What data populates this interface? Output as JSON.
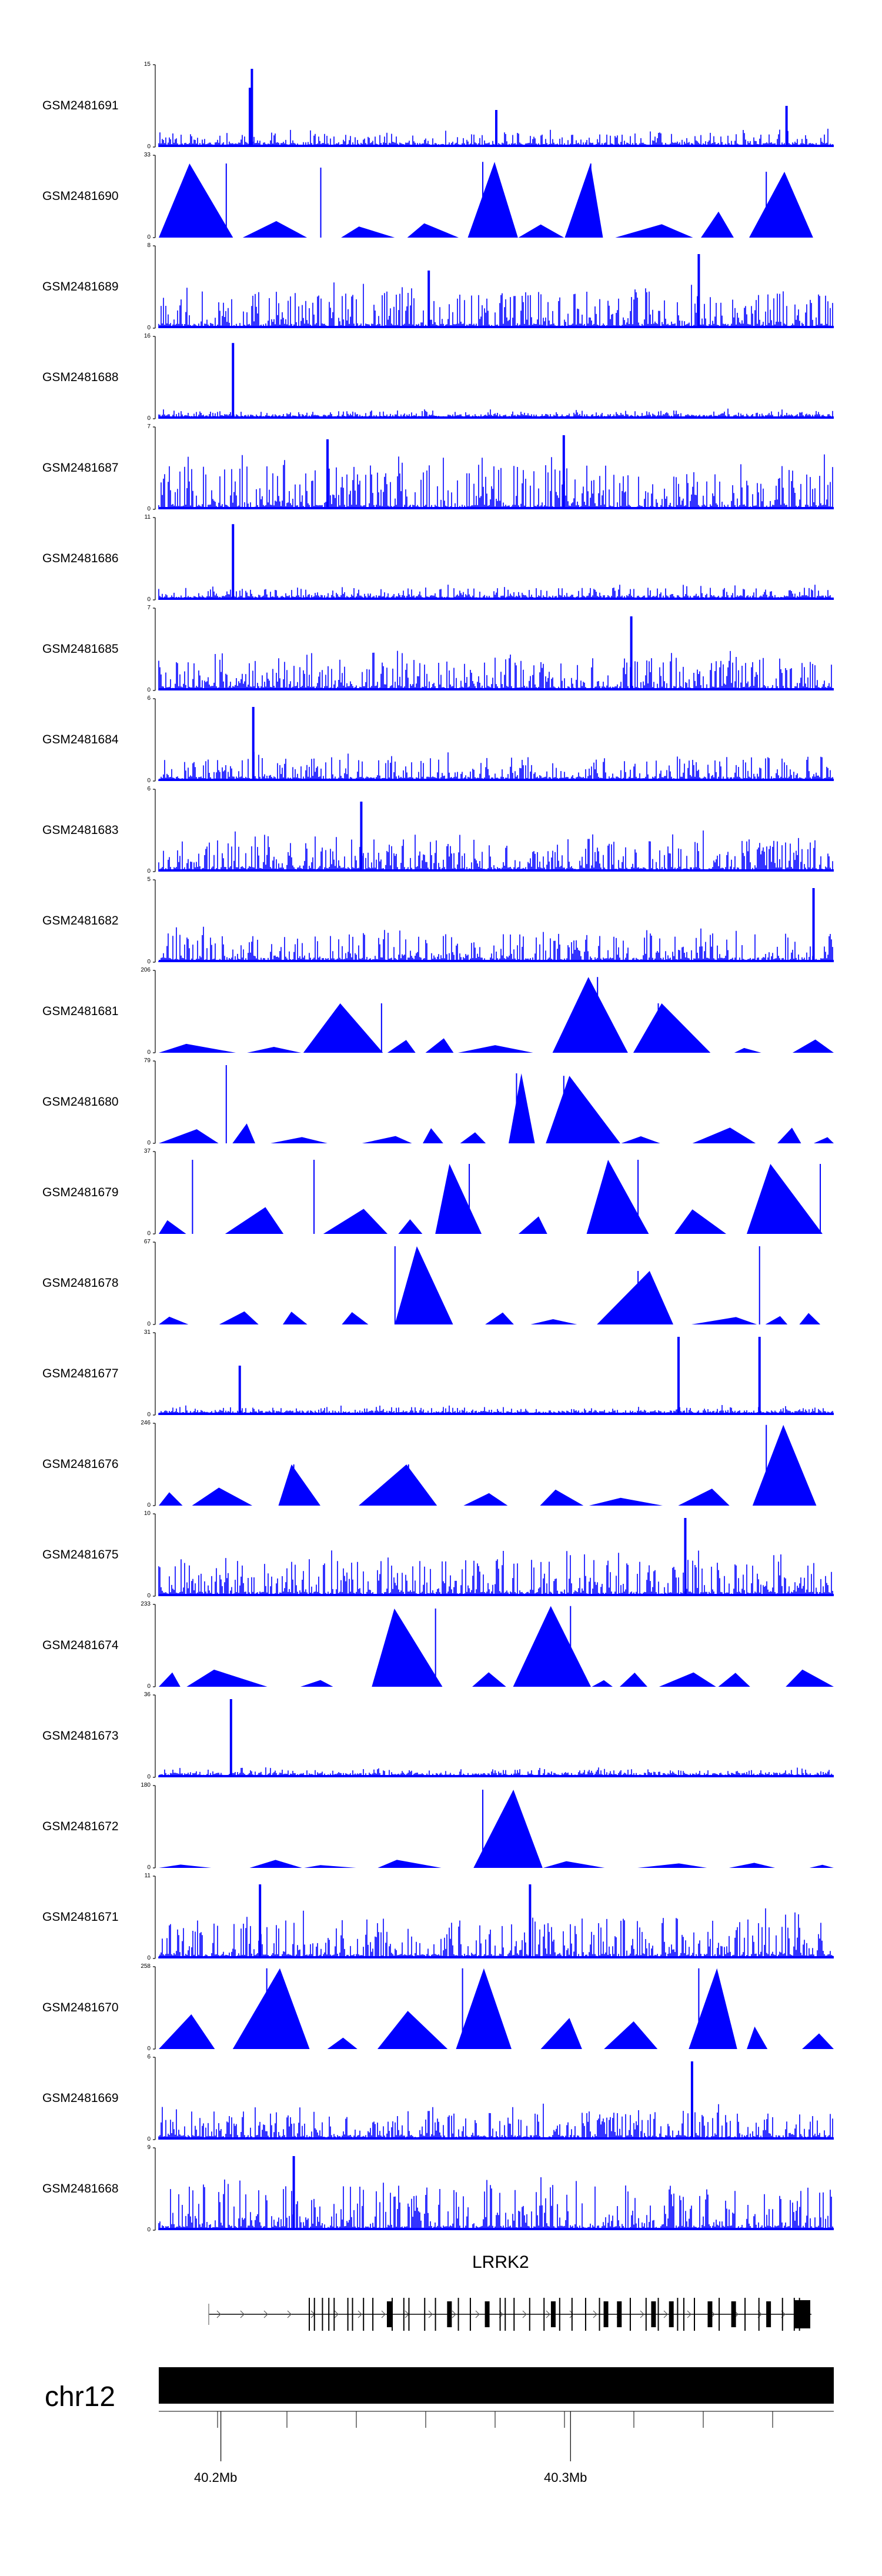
{
  "chart_data": {
    "type": "area",
    "colors": {
      "signal": "#0000ff",
      "axis": "#000000",
      "gene": "#000000",
      "chrom": "#000000"
    },
    "axis_min_label": "0",
    "tracks": [
      {
        "name": "GSM2481691",
        "ymax": "15",
        "style": "dense",
        "peaks": [
          [
            0.135,
            0.72
          ],
          [
            0.138,
            0.95
          ],
          [
            0.5,
            0.45
          ],
          [
            0.93,
            0.5
          ]
        ],
        "base": 0.18
      },
      {
        "name": "GSM2481690",
        "ymax": "33",
        "style": "tri",
        "peaks": [
          [
            0.1,
            0.9
          ],
          [
            0.24,
            0.85
          ],
          [
            0.48,
            0.92
          ],
          [
            0.64,
            0.9
          ],
          [
            0.9,
            0.8
          ]
        ],
        "base": 0.6
      },
      {
        "name": "GSM2481689",
        "ymax": "8",
        "style": "dense",
        "peaks": [
          [
            0.4,
            0.7
          ],
          [
            0.8,
            0.9
          ]
        ],
        "base": 0.45
      },
      {
        "name": "GSM2481688",
        "ymax": "16",
        "style": "dense",
        "peaks": [
          [
            0.11,
            0.92
          ]
        ],
        "base": 0.1
      },
      {
        "name": "GSM2481687",
        "ymax": "7",
        "style": "dense",
        "peaks": [
          [
            0.25,
            0.85
          ],
          [
            0.6,
            0.9
          ]
        ],
        "base": 0.55
      },
      {
        "name": "GSM2481686",
        "ymax": "11",
        "style": "dense",
        "peaks": [
          [
            0.11,
            0.92
          ]
        ],
        "base": 0.15
      },
      {
        "name": "GSM2481685",
        "ymax": "7",
        "style": "dense",
        "peaks": [
          [
            0.7,
            0.9
          ]
        ],
        "base": 0.4
      },
      {
        "name": "GSM2481684",
        "ymax": "6",
        "style": "dense",
        "peaks": [
          [
            0.14,
            0.9
          ]
        ],
        "base": 0.3
      },
      {
        "name": "GSM2481683",
        "ymax": "6",
        "style": "dense",
        "peaks": [
          [
            0.3,
            0.85
          ]
        ],
        "base": 0.4
      },
      {
        "name": "GSM2481682",
        "ymax": "5",
        "style": "dense",
        "peaks": [
          [
            0.97,
            0.9
          ]
        ],
        "base": 0.35
      },
      {
        "name": "GSM2481681",
        "ymax": "206",
        "style": "tri",
        "peaks": [
          [
            0.33,
            0.6
          ],
          [
            0.65,
            0.92
          ],
          [
            0.74,
            0.6
          ]
        ],
        "base": 0.35
      },
      {
        "name": "GSM2481680",
        "ymax": "79",
        "style": "tri",
        "peaks": [
          [
            0.1,
            0.95
          ],
          [
            0.53,
            0.85
          ],
          [
            0.6,
            0.82
          ]
        ],
        "base": 0.45
      },
      {
        "name": "GSM2481679",
        "ymax": "37",
        "style": "tri",
        "peaks": [
          [
            0.05,
            0.9
          ],
          [
            0.23,
            0.9
          ],
          [
            0.46,
            0.85
          ],
          [
            0.71,
            0.9
          ],
          [
            0.98,
            0.85
          ]
        ],
        "base": 0.9
      },
      {
        "name": "GSM2481678",
        "ymax": "67",
        "style": "tri",
        "peaks": [
          [
            0.35,
            0.95
          ],
          [
            0.71,
            0.65
          ],
          [
            0.89,
            0.95
          ]
        ],
        "base": 0.3
      },
      {
        "name": "GSM2481677",
        "ymax": "31",
        "style": "dense",
        "peaks": [
          [
            0.12,
            0.6
          ],
          [
            0.77,
            0.95
          ],
          [
            0.89,
            0.95
          ]
        ],
        "base": 0.1
      },
      {
        "name": "GSM2481676",
        "ymax": "246",
        "style": "tri",
        "peaks": [
          [
            0.2,
            0.5
          ],
          [
            0.37,
            0.5
          ],
          [
            0.9,
            0.98
          ]
        ],
        "base": 0.5
      },
      {
        "name": "GSM2481675",
        "ymax": "10",
        "style": "dense",
        "peaks": [
          [
            0.78,
            0.95
          ]
        ],
        "base": 0.45
      },
      {
        "name": "GSM2481674",
        "ymax": "233",
        "style": "tri",
        "peaks": [
          [
            0.41,
            0.95
          ],
          [
            0.61,
            0.98
          ]
        ],
        "base": 0.5
      },
      {
        "name": "GSM2481673",
        "ymax": "36",
        "style": "dense",
        "peaks": [
          [
            0.107,
            0.95
          ]
        ],
        "base": 0.1
      },
      {
        "name": "GSM2481672",
        "ymax": "180",
        "style": "tri",
        "peaks": [
          [
            0.48,
            0.95
          ]
        ],
        "base": 0.2
      },
      {
        "name": "GSM2481671",
        "ymax": "11",
        "style": "dense",
        "peaks": [
          [
            0.15,
            0.9
          ],
          [
            0.55,
            0.9
          ]
        ],
        "base": 0.5
      },
      {
        "name": "GSM2481670",
        "ymax": "258",
        "style": "tri",
        "peaks": [
          [
            0.16,
            0.98
          ],
          [
            0.45,
            0.98
          ],
          [
            0.8,
            0.98
          ]
        ],
        "base": 0.9
      },
      {
        "name": "GSM2481669",
        "ymax": "6",
        "style": "dense",
        "peaks": [
          [
            0.79,
            0.95
          ]
        ],
        "base": 0.35
      },
      {
        "name": "GSM2481668",
        "ymax": "9",
        "style": "dense",
        "peaks": [
          [
            0.2,
            0.9
          ]
        ],
        "base": 0.55
      }
    ],
    "gene": {
      "name": "LRRK2",
      "strand": "+"
    },
    "chromosome": {
      "name": "chr12",
      "ticks": [
        {
          "label": "40.2Mb",
          "pos": 0.092
        },
        {
          "label": "40.3Mb",
          "pos": 0.61
        }
      ]
    }
  }
}
